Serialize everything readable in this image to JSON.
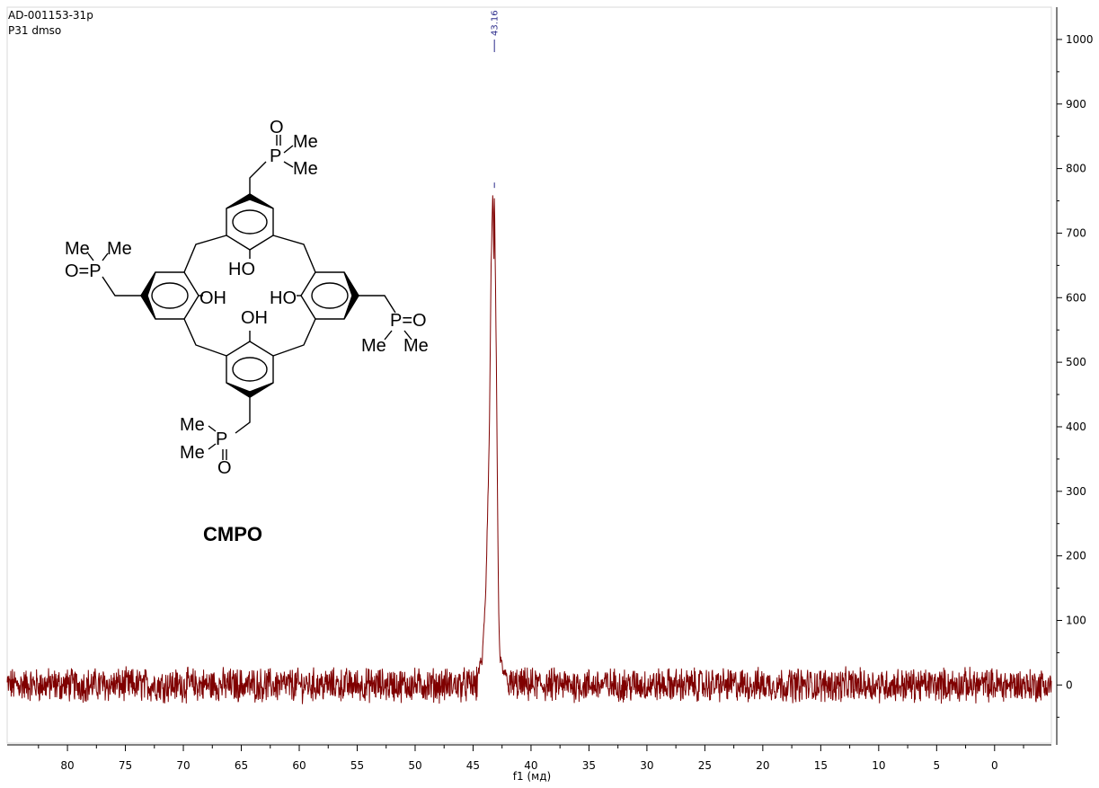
{
  "header": {
    "sample_id": "AD-001153-31p",
    "experiment": "P31 dmso"
  },
  "compound_label": "CMPO",
  "structure_labels": {
    "oxygen": "O",
    "phosphorus": "P",
    "methyl": "Me",
    "hydroxyl": "OH",
    "hydroxyl_left": "HO",
    "p_equals_o": "P=O",
    "o_equals_p": "O=P"
  },
  "colors": {
    "spectrum": "#7f0000",
    "peak_marker": "#2b2b8a",
    "axis": "#000000"
  },
  "chart_data": {
    "type": "line",
    "title": "",
    "xlabel": "f1 (мд)",
    "ylabel": "",
    "x_reversed": true,
    "xlim": [
      85.2,
      -4.9
    ],
    "ylim": [
      -90,
      1050
    ],
    "x_ticks": [
      80,
      75,
      70,
      65,
      60,
      55,
      50,
      45,
      40,
      35,
      30,
      25,
      20,
      15,
      10,
      5,
      0
    ],
    "x_tick_labels": [
      "80",
      "75",
      "70",
      "65",
      "60",
      "55",
      "50",
      "45",
      "40",
      "35",
      "30",
      "25",
      "20",
      "15",
      "10",
      "5",
      "0"
    ],
    "y_ticks": [
      0,
      100,
      200,
      300,
      400,
      500,
      600,
      700,
      800,
      900,
      1000
    ],
    "y_tick_labels": [
      "0",
      "100",
      "200",
      "300",
      "400",
      "500",
      "600",
      "700",
      "800",
      "900",
      "1000"
    ],
    "y_axis_side": "right",
    "grid": false,
    "peaks": [
      {
        "label": "43.16",
        "x": 43.16,
        "height": 770
      }
    ],
    "baseline_noise_amplitude": 25,
    "series": [
      {
        "x": [
          44.6,
          44.2,
          43.9,
          43.6,
          43.45,
          43.3,
          43.2,
          43.16,
          43.1,
          43.0,
          42.9,
          42.8,
          42.7,
          42.4,
          42.0
        ],
        "values": [
          20,
          40,
          150,
          380,
          640,
          770,
          650,
          760,
          670,
          520,
          300,
          120,
          45,
          20,
          10
        ]
      }
    ]
  }
}
